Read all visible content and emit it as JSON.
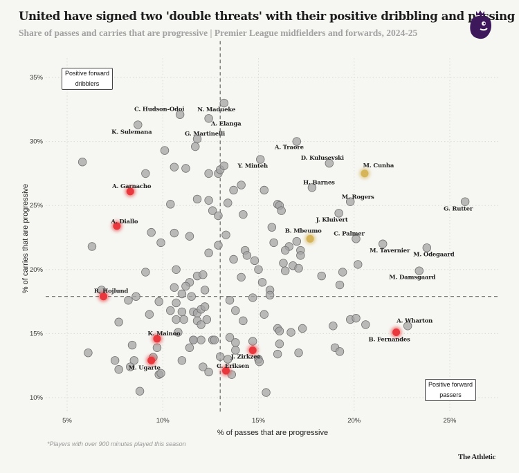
{
  "header": {
    "title": "United have signed two 'double threats' with their positive dribbling and passing",
    "subtitle": "Share of passes and carries that are progressive | Premier League midfielders and forwards, 2024-25",
    "logo": "Premier League lion logo"
  },
  "annotations": {
    "top_left": [
      "Positive forward",
      "dribblers"
    ],
    "bottom_right": [
      "Positive forward",
      "passers"
    ]
  },
  "footnote": "*Players with over 900 minutes played this season",
  "brand": "The Athletic",
  "colors": {
    "background": "#f6f6f2",
    "default_point": "#a9a9a9",
    "united": "#e8383d",
    "targets": "#d6b55a"
  },
  "chart_data": {
    "type": "scatter",
    "title": "United have signed two 'double threats' with their positive dribbling and passing",
    "subtitle": "Share of passes and carries that are progressive | Premier League midfielders and forwards, 2024-25",
    "xlabel": "% of passes that are progressive",
    "ylabel": "% of carries that are progressive",
    "xlim": [
      3.8,
      27.6
    ],
    "ylim": [
      8.9,
      36.5
    ],
    "xticks": [
      5,
      10,
      15,
      20,
      25
    ],
    "yticks": [
      10,
      15,
      20,
      25,
      30,
      35
    ],
    "xtick_labels": [
      "5%",
      "10%",
      "15%",
      "20%",
      "25%"
    ],
    "ytick_labels": [
      "10%",
      "15%",
      "20%",
      "25%",
      "30%",
      "35%"
    ],
    "grid": true,
    "reference_lines": {
      "x": 13.0,
      "y": 17.9
    },
    "labeled_points": [
      {
        "name": "N. Madueke",
        "x": 13.2,
        "y": 33.0,
        "group": "other"
      },
      {
        "name": "C. Hudson-Odoi",
        "x": 10.9,
        "y": 32.1,
        "group": "other"
      },
      {
        "name": "A. Elanga",
        "x": 12.4,
        "y": 31.8,
        "group": "other"
      },
      {
        "name": "K. Sulemana",
        "x": 8.7,
        "y": 31.3,
        "group": "other"
      },
      {
        "name": "G. Martinelli",
        "x": 11.8,
        "y": 30.2,
        "group": "other"
      },
      {
        "name": "A. Traore",
        "x": 17.0,
        "y": 30.0,
        "group": "other"
      },
      {
        "name": "D. Kulusevski",
        "x": 18.7,
        "y": 28.3,
        "group": "other"
      },
      {
        "name": "Y. Minteh",
        "x": 15.1,
        "y": 28.6,
        "group": "other"
      },
      {
        "name": "M. Cunha",
        "x": 20.55,
        "y": 27.5,
        "group": "target"
      },
      {
        "name": "H. Barnes",
        "x": 17.8,
        "y": 26.4,
        "group": "other"
      },
      {
        "name": "M. Rogers",
        "x": 19.8,
        "y": 25.3,
        "group": "other"
      },
      {
        "name": "G. Rutter",
        "x": 25.8,
        "y": 25.3,
        "group": "other"
      },
      {
        "name": "J. Kluivert",
        "x": 19.2,
        "y": 24.4,
        "group": "other"
      },
      {
        "name": "A. Garnacho",
        "x": 8.3,
        "y": 26.1,
        "group": "united"
      },
      {
        "name": "A. Diallo",
        "x": 7.6,
        "y": 23.4,
        "group": "united"
      },
      {
        "name": "B. Mbeumo",
        "x": 17.7,
        "y": 22.4,
        "group": "target"
      },
      {
        "name": "C. Palmer",
        "x": 20.1,
        "y": 22.4,
        "group": "other"
      },
      {
        "name": "M. Tavernier",
        "x": 21.5,
        "y": 22.0,
        "group": "other"
      },
      {
        "name": "M. Odegaard",
        "x": 23.8,
        "y": 21.7,
        "group": "other"
      },
      {
        "name": "M. Damsgaard",
        "x": 23.4,
        "y": 19.9,
        "group": "other"
      },
      {
        "name": "R. Hojlund",
        "x": 6.9,
        "y": 17.9,
        "group": "united"
      },
      {
        "name": "A. Wharton",
        "x": 22.8,
        "y": 15.6,
        "group": "other"
      },
      {
        "name": "B. Fernandes",
        "x": 22.2,
        "y": 15.1,
        "group": "united"
      },
      {
        "name": "K. Mainoo",
        "x": 9.7,
        "y": 14.6,
        "group": "united"
      },
      {
        "name": "M. Ugarte",
        "x": 9.4,
        "y": 12.9,
        "group": "united"
      },
      {
        "name": "J. Zirkzee",
        "x": 14.7,
        "y": 13.7,
        "group": "united"
      },
      {
        "name": "C. Eriksen",
        "x": 13.3,
        "y": 12.1,
        "group": "united"
      }
    ],
    "other_points": [
      [
        5.8,
        28.4
      ],
      [
        10.1,
        29.3
      ],
      [
        10.6,
        28.0
      ],
      [
        11.2,
        27.9
      ],
      [
        9.1,
        27.5
      ],
      [
        11.7,
        29.6
      ],
      [
        12.4,
        27.5
      ],
      [
        12.9,
        27.5
      ],
      [
        13.0,
        27.8
      ],
      [
        13.2,
        28.1
      ],
      [
        13.7,
        26.2
      ],
      [
        11.8,
        25.5
      ],
      [
        12.4,
        25.4
      ],
      [
        13.4,
        25.2
      ],
      [
        10.4,
        25.1
      ],
      [
        12.6,
        24.6
      ],
      [
        12.9,
        24.2
      ],
      [
        14.1,
        26.6
      ],
      [
        15.3,
        26.2
      ],
      [
        16.0,
        25.1
      ],
      [
        16.1,
        25.0
      ],
      [
        16.2,
        24.6
      ],
      [
        14.2,
        24.3
      ],
      [
        15.7,
        23.3
      ],
      [
        9.4,
        22.9
      ],
      [
        10.6,
        22.85
      ],
      [
        11.4,
        22.6
      ],
      [
        9.9,
        22.1
      ],
      [
        6.3,
        21.8
      ],
      [
        13.3,
        22.7
      ],
      [
        12.9,
        21.9
      ],
      [
        12.4,
        21.3
      ],
      [
        13.7,
        20.8
      ],
      [
        9.1,
        19.8
      ],
      [
        10.7,
        20.0
      ],
      [
        11.8,
        19.5
      ],
      [
        12.1,
        19.6
      ],
      [
        11.4,
        19.0
      ],
      [
        11.2,
        18.7
      ],
      [
        10.6,
        18.6
      ],
      [
        12.2,
        18.4
      ],
      [
        11.0,
        18.1
      ],
      [
        11.5,
        17.9
      ],
      [
        6.8,
        18.4
      ],
      [
        8.6,
        17.9
      ],
      [
        8.2,
        17.6
      ],
      [
        9.8,
        17.5
      ],
      [
        10.7,
        17.4
      ],
      [
        13.5,
        17.6
      ],
      [
        10.4,
        16.8
      ],
      [
        11.0,
        16.7
      ],
      [
        11.6,
        16.7
      ],
      [
        11.8,
        16.6
      ],
      [
        12.0,
        16.9
      ],
      [
        12.2,
        17.1
      ],
      [
        9.3,
        16.5
      ],
      [
        10.7,
        16.1
      ],
      [
        11.1,
        16.1
      ],
      [
        11.8,
        16.0
      ],
      [
        12.3,
        16.1
      ],
      [
        12.0,
        15.7
      ],
      [
        7.7,
        15.9
      ],
      [
        10.8,
        15.1
      ],
      [
        13.5,
        14.7
      ],
      [
        11.6,
        14.5
      ],
      [
        12.0,
        14.5
      ],
      [
        12.6,
        14.5
      ],
      [
        12.7,
        14.5
      ],
      [
        8.4,
        14.1
      ],
      [
        9.7,
        13.9
      ],
      [
        11.4,
        13.9
      ],
      [
        6.1,
        13.5
      ],
      [
        9.5,
        13.15
      ],
      [
        13.0,
        13.2
      ],
      [
        13.4,
        13.0
      ],
      [
        7.5,
        12.9
      ],
      [
        8.5,
        12.9
      ],
      [
        11.0,
        12.9
      ],
      [
        8.3,
        12.4
      ],
      [
        7.7,
        12.2
      ],
      [
        12.1,
        12.4
      ],
      [
        12.4,
        12.0
      ],
      [
        9.8,
        11.8
      ],
      [
        9.9,
        11.9
      ],
      [
        8.8,
        10.5
      ],
      [
        15.8,
        22.1
      ],
      [
        16.6,
        21.8
      ],
      [
        17.0,
        22.2
      ],
      [
        16.4,
        21.5
      ],
      [
        17.2,
        21.5
      ],
      [
        17.2,
        21.1
      ],
      [
        14.3,
        21.5
      ],
      [
        14.4,
        21.1
      ],
      [
        14.8,
        20.7
      ],
      [
        16.3,
        20.5
      ],
      [
        16.8,
        20.3
      ],
      [
        17.1,
        20.1
      ],
      [
        16.4,
        19.9
      ],
      [
        15.0,
        20.0
      ],
      [
        20.2,
        20.4
      ],
      [
        19.4,
        19.8
      ],
      [
        19.25,
        18.8
      ],
      [
        18.3,
        19.5
      ],
      [
        14.1,
        19.4
      ],
      [
        15.2,
        19.0
      ],
      [
        15.6,
        18.4
      ],
      [
        15.6,
        18.0
      ],
      [
        14.7,
        17.8
      ],
      [
        13.8,
        16.8
      ],
      [
        14.2,
        16.0
      ],
      [
        15.3,
        16.5
      ],
      [
        16.0,
        15.4
      ],
      [
        16.1,
        15.2
      ],
      [
        16.7,
        15.1
      ],
      [
        17.3,
        15.4
      ],
      [
        18.9,
        15.6
      ],
      [
        19.8,
        16.1
      ],
      [
        20.1,
        16.2
      ],
      [
        20.6,
        15.7
      ],
      [
        13.8,
        14.3
      ],
      [
        13.8,
        13.7
      ],
      [
        14.7,
        14.4
      ],
      [
        15.0,
        13.0
      ],
      [
        15.05,
        12.8
      ],
      [
        16.1,
        14.2
      ],
      [
        16.0,
        13.4
      ],
      [
        17.1,
        13.5
      ],
      [
        19.0,
        13.9
      ],
      [
        19.25,
        13.6
      ],
      [
        13.6,
        11.8
      ],
      [
        15.4,
        10.4
      ],
      [
        11.6,
        14.5
      ]
    ]
  }
}
